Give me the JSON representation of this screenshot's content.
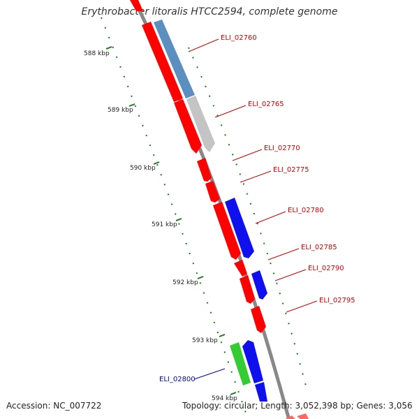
{
  "title": "Erythrobacter litoralis HTCC2594, complete genome",
  "footer": {
    "accession": "Accession: NC_007722",
    "summary": "Topology: circular; Length: 3,052,398 bp; Genes: 3,056"
  },
  "ticks": [
    "588 kbp",
    "589 kbp",
    "590 kbp",
    "591 kbp",
    "592 kbp",
    "593 kbp",
    "594 kbp"
  ],
  "gene_labels": [
    {
      "text": "ELI_02760",
      "color": "#cc0000"
    },
    {
      "text": "ELI_02765",
      "color": "#cc0000"
    },
    {
      "text": "ELI_02770",
      "color": "#cc0000"
    },
    {
      "text": "ELI_02775",
      "color": "#cc0000"
    },
    {
      "text": "ELI_02780",
      "color": "#cc0000"
    },
    {
      "text": "ELI_02785",
      "color": "#cc0000"
    },
    {
      "text": "ELI_02790",
      "color": "#cc0000"
    },
    {
      "text": "ELI_02795",
      "color": "#cc0000"
    },
    {
      "text": "ELI_02800",
      "color": "#0000aa"
    }
  ],
  "colors": {
    "cds": "#ff0000",
    "blue": "#1010ee",
    "steel": "#5a8fc0",
    "gray": "#c4c4c4",
    "green": "#33cc33",
    "backbone": "#888888",
    "tick_green": "#1a7a1a"
  }
}
